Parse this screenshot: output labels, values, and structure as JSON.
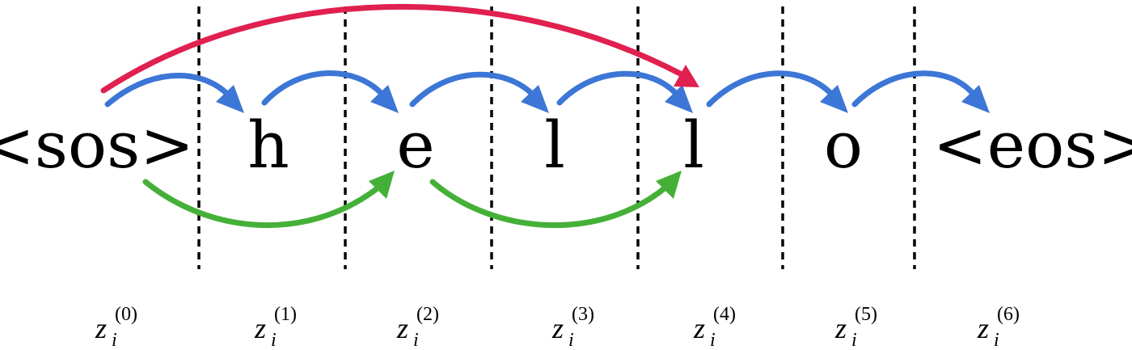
{
  "tokens": [
    "<sos>",
    "h",
    "e",
    "l",
    "l",
    "o",
    "<eos>"
  ],
  "latent_labels": [
    {
      "base": "z",
      "sub": "i",
      "sup": "(0)"
    },
    {
      "base": "z",
      "sub": "i",
      "sup": "(1)"
    },
    {
      "base": "z",
      "sub": "i",
      "sup": "(2)"
    },
    {
      "base": "z",
      "sub": "i",
      "sup": "(3)"
    },
    {
      "base": "z",
      "sub": "i",
      "sup": "(4)"
    },
    {
      "base": "z",
      "sub": "i",
      "sup": "(5)"
    },
    {
      "base": "z",
      "sub": "i",
      "sup": "(6)"
    }
  ],
  "colors": {
    "one_step": "#3c76d6",
    "two_step": "#45b038",
    "four_step": "#e0204f"
  },
  "arrows": {
    "one_step": [
      [
        0,
        1
      ],
      [
        1,
        2
      ],
      [
        2,
        3
      ],
      [
        3,
        4
      ],
      [
        4,
        5
      ],
      [
        5,
        6
      ]
    ],
    "two_step": [
      [
        0,
        2
      ],
      [
        2,
        4
      ]
    ],
    "four_step": [
      [
        0,
        4
      ]
    ]
  }
}
